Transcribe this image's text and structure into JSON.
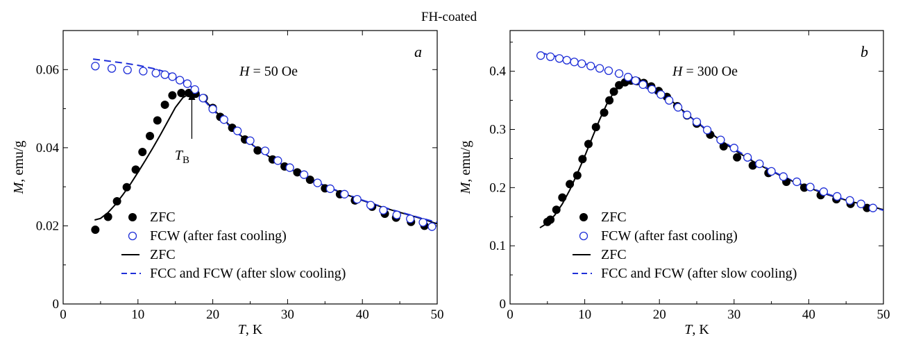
{
  "figure": {
    "title": "FH-coated"
  },
  "colors": {
    "fcw_marker": "#1f2fd8",
    "slow_dashed": "#1f2fd8",
    "zfc": "#000000"
  },
  "chart_data": [
    {
      "type": "scatter",
      "panel_label": "a",
      "annotation": "H = 50 Oe",
      "marker_annotation": {
        "label": "T_B",
        "x": 17.2
      },
      "xlabel": "T, K",
      "ylabel": "M, emu/g",
      "xlim": [
        0,
        50
      ],
      "ylim": [
        0,
        0.07
      ],
      "xticks": [
        0,
        10,
        20,
        30,
        40,
        50
      ],
      "yticks": [
        0,
        0.02,
        0.04,
        0.06
      ],
      "xtick_labels": [
        "0",
        "10",
        "20",
        "30",
        "40",
        "50"
      ],
      "ytick_labels": [
        "0",
        "0.02",
        "0.04",
        "0.06"
      ],
      "legend_position": "bottom-left",
      "series": [
        {
          "name": "ZFC",
          "kind": "filled-circles",
          "x": [
            4.3,
            6.0,
            7.2,
            8.5,
            9.7,
            10.6,
            11.6,
            12.6,
            13.6,
            14.6,
            15.8,
            16.8,
            17.7,
            18.8,
            20.0,
            21.0,
            22.6,
            24.3,
            26.0,
            28.0,
            29.6,
            31.3,
            33.0,
            35.0,
            37.0,
            39.0,
            41.3,
            43.0,
            44.5,
            46.5,
            48.3
          ],
          "y": [
            0.019,
            0.0223,
            0.0263,
            0.0299,
            0.0344,
            0.0389,
            0.043,
            0.047,
            0.051,
            0.0534,
            0.054,
            0.054,
            0.0538,
            0.0527,
            0.0502,
            0.0479,
            0.0451,
            0.0421,
            0.0393,
            0.037,
            0.0352,
            0.0337,
            0.0318,
            0.0296,
            0.0281,
            0.0265,
            0.0249,
            0.0231,
            0.0221,
            0.021,
            0.02
          ]
        },
        {
          "name": "FCW (after fast cooling)",
          "kind": "open-circles",
          "x": [
            4.3,
            6.5,
            8.6,
            10.7,
            12.4,
            13.6,
            14.6,
            15.6,
            16.6,
            17.6,
            18.7,
            20.0,
            21.5,
            23.3,
            25.0,
            27.0,
            28.7,
            30.3,
            32.2,
            34.0,
            35.7,
            37.6,
            39.3,
            41.1,
            42.8,
            44.6,
            46.4,
            48.1,
            49.3
          ],
          "y": [
            0.0609,
            0.0603,
            0.0599,
            0.0596,
            0.0591,
            0.0587,
            0.0582,
            0.0573,
            0.0564,
            0.0549,
            0.0527,
            0.0499,
            0.0472,
            0.0443,
            0.0418,
            0.0392,
            0.0367,
            0.0349,
            0.0331,
            0.031,
            0.0295,
            0.0281,
            0.0268,
            0.0253,
            0.024,
            0.0228,
            0.0218,
            0.0209,
            0.0198
          ]
        },
        {
          "name": "ZFC",
          "kind": "solid-line",
          "x": [
            4.2,
            5,
            6,
            7,
            8,
            9,
            10,
            11,
            12,
            13,
            14,
            15,
            16,
            17,
            17.6,
            18.5,
            20,
            22,
            24,
            26,
            28,
            30,
            32,
            34,
            36,
            38,
            40,
            42,
            44,
            46,
            48,
            50
          ],
          "y": [
            0.0215,
            0.0219,
            0.0234,
            0.0255,
            0.028,
            0.0307,
            0.0337,
            0.0368,
            0.04,
            0.0433,
            0.0468,
            0.0503,
            0.0528,
            0.054,
            0.0541,
            0.053,
            0.05,
            0.0462,
            0.0427,
            0.0397,
            0.0371,
            0.0349,
            0.0329,
            0.0311,
            0.0294,
            0.0279,
            0.0265,
            0.0252,
            0.024,
            0.0229,
            0.0218,
            0.0205
          ]
        },
        {
          "name": "FCC and FCW (after slow cooling)",
          "kind": "dashed-line",
          "x": [
            4.0,
            6,
            8,
            10,
            12,
            13,
            14,
            15,
            16,
            17,
            18,
            19,
            20,
            22,
            24,
            26,
            28,
            30,
            32,
            34,
            36,
            38,
            40,
            42,
            44,
            46,
            48,
            50
          ],
          "y": [
            0.0627,
            0.0622,
            0.0617,
            0.0611,
            0.0603,
            0.0598,
            0.0592,
            0.0584,
            0.0573,
            0.0558,
            0.0539,
            0.0518,
            0.0497,
            0.046,
            0.0426,
            0.0397,
            0.0371,
            0.0349,
            0.0329,
            0.0311,
            0.0295,
            0.028,
            0.0266,
            0.0253,
            0.0241,
            0.023,
            0.0219,
            0.0209
          ]
        }
      ]
    },
    {
      "type": "scatter",
      "panel_label": "b",
      "annotation": "H = 300 Oe",
      "xlabel": "T, K",
      "ylabel": "M, emu/g",
      "xlim": [
        0,
        50
      ],
      "ylim": [
        0,
        0.47
      ],
      "xticks": [
        0,
        10,
        20,
        30,
        40,
        50
      ],
      "yticks": [
        0,
        0.1,
        0.2,
        0.3,
        0.4
      ],
      "xtick_labels": [
        "0",
        "10",
        "20",
        "30",
        "40",
        "50"
      ],
      "ytick_labels": [
        "0",
        "0.1",
        "0.2",
        "0.3",
        "0.4"
      ],
      "legend_position": "bottom-left",
      "series": [
        {
          "name": "ZFC",
          "kind": "filled-circles",
          "x": [
            5.0,
            5.4,
            6.2,
            7.0,
            8.0,
            9.0,
            9.7,
            10.5,
            11.5,
            12.6,
            13.3,
            13.9,
            14.6,
            15.4,
            16.2,
            17.0,
            17.9,
            18.9,
            19.9,
            21.0,
            22.4,
            23.7,
            25.0,
            26.8,
            28.6,
            30.4,
            32.5,
            34.6,
            37.0,
            39.4,
            41.6,
            43.7,
            45.6,
            47.8
          ],
          "y": [
            0.141,
            0.145,
            0.162,
            0.183,
            0.206,
            0.221,
            0.249,
            0.275,
            0.304,
            0.329,
            0.35,
            0.365,
            0.376,
            0.381,
            0.384,
            0.383,
            0.38,
            0.374,
            0.366,
            0.356,
            0.34,
            0.324,
            0.31,
            0.291,
            0.271,
            0.252,
            0.238,
            0.225,
            0.21,
            0.2,
            0.187,
            0.18,
            0.172,
            0.165
          ]
        },
        {
          "name": "FCW (after fast cooling)",
          "kind": "open-circles",
          "x": [
            4.1,
            5.4,
            6.6,
            7.6,
            8.6,
            9.6,
            10.8,
            12.0,
            13.2,
            14.6,
            15.8,
            16.8,
            17.8,
            19.0,
            20.2,
            21.3,
            22.5,
            23.7,
            25.0,
            26.4,
            28.2,
            30.0,
            31.8,
            33.4,
            35.0,
            36.6,
            38.4,
            40.2,
            42.0,
            43.8,
            45.5,
            47.0,
            48.6
          ],
          "y": [
            0.427,
            0.425,
            0.422,
            0.419,
            0.416,
            0.413,
            0.409,
            0.405,
            0.401,
            0.396,
            0.39,
            0.384,
            0.377,
            0.369,
            0.36,
            0.35,
            0.338,
            0.325,
            0.313,
            0.299,
            0.282,
            0.268,
            0.252,
            0.241,
            0.228,
            0.219,
            0.21,
            0.201,
            0.193,
            0.185,
            0.178,
            0.172,
            0.165
          ]
        },
        {
          "name": "ZFC",
          "kind": "solid-line",
          "x": [
            4.0,
            5,
            6,
            7,
            8,
            9,
            10,
            11,
            12,
            13,
            14,
            15,
            16,
            16.8,
            17.6,
            18.5,
            20,
            22,
            24,
            26,
            28,
            30,
            32,
            34,
            36,
            38,
            40,
            42,
            44,
            46,
            48,
            50
          ],
          "y": [
            0.131,
            0.139,
            0.153,
            0.172,
            0.196,
            0.224,
            0.254,
            0.286,
            0.317,
            0.345,
            0.366,
            0.378,
            0.383,
            0.384,
            0.382,
            0.378,
            0.366,
            0.345,
            0.323,
            0.302,
            0.283,
            0.265,
            0.249,
            0.235,
            0.222,
            0.21,
            0.2,
            0.19,
            0.182,
            0.175,
            0.169,
            0.162
          ]
        },
        {
          "name": "FCC and FCW (after slow cooling)",
          "kind": "dashed-line",
          "x": [
            4.0,
            6,
            8,
            10,
            12,
            14,
            16,
            18,
            20,
            22,
            24,
            26,
            28,
            30,
            32,
            34,
            36,
            38,
            40,
            42,
            44,
            46,
            48,
            50
          ],
          "y": [
            0.432,
            0.426,
            0.42,
            0.413,
            0.405,
            0.396,
            0.385,
            0.373,
            0.358,
            0.341,
            0.323,
            0.303,
            0.284,
            0.267,
            0.251,
            0.236,
            0.223,
            0.211,
            0.201,
            0.191,
            0.183,
            0.175,
            0.168,
            0.161
          ]
        }
      ]
    }
  ]
}
